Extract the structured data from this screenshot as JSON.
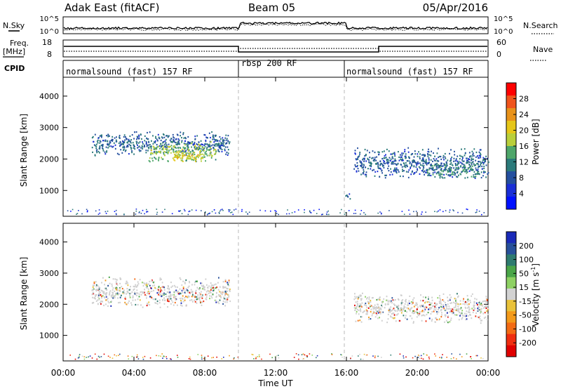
{
  "header": {
    "title": "Adak East (fitACF)",
    "beam": "Beam 05",
    "date": "05/Apr/2016"
  },
  "top_panels": {
    "nsky_label": "N.Sky",
    "nsearch_label": "N.Search",
    "nsky_ticks": [
      "10^5",
      "10^0"
    ],
    "nsearch_ticks": [
      "10^5",
      "10^0"
    ],
    "freq_label": "Freq.",
    "freq_unit": "[MHz]",
    "freq_ticks": [
      "18",
      "8"
    ],
    "nave_label": "Nave",
    "nave_ticks": [
      "60",
      "0"
    ],
    "cpid_label": "CPID",
    "cpid_segments": [
      {
        "label": "normalsound (fast) 157 RF",
        "start_h": 0,
        "end_h": 10
      },
      {
        "label": "rbsp 200 RF",
        "start_h": 10,
        "end_h": 16
      },
      {
        "label": "normalsound (fast) 157 RF",
        "start_h": 16,
        "end_h": 24
      }
    ]
  },
  "x_axis": {
    "label": "Time UT",
    "ticks": [
      "00:00",
      "04:00",
      "08:00",
      "12:00",
      "16:00",
      "20:00",
      "00:00"
    ],
    "range_h": [
      0,
      24
    ]
  },
  "colorbars": {
    "power": {
      "label": "Power [dB]",
      "ticks": [
        "28",
        "24",
        "20",
        "16",
        "12",
        "8",
        "4"
      ],
      "colors": [
        "#ff0000",
        "#f0541c",
        "#e8921a",
        "#e6c619",
        "#b9cf3b",
        "#4ea66a",
        "#2b7a7a",
        "#244f9e",
        "#1a2fd6",
        "#0010ff"
      ]
    },
    "velocity": {
      "label": "Velocity [m s",
      "label_sup": "-1",
      "label_end": "]",
      "ticks": [
        "200",
        "100",
        "50",
        "15",
        "-15",
        "-50",
        "-100",
        "-200"
      ],
      "colors": [
        "#1a2ab8",
        "#27509a",
        "#2e7b6f",
        "#4aa548",
        "#8ed163",
        "#d2d2d2",
        "#e9c23a",
        "#f39a1a",
        "#f36b14",
        "#ef2e10",
        "#e00000"
      ]
    }
  },
  "chart_data": [
    {
      "type": "heatmap",
      "name": "power",
      "ylabel": "Slant Range [km]",
      "yticks": [
        1000,
        2000,
        3000,
        4000
      ],
      "ylim": [
        180,
        4600
      ],
      "xlim": [
        0,
        24
      ],
      "xlabel": "Time UT",
      "colorbar_label": "Power [dB]",
      "regions": [
        {
          "t_start": 1.6,
          "t_end": 9.4,
          "r_min": 2100,
          "r_max": 2900,
          "value_db": 8
        },
        {
          "t_start": 4.8,
          "t_end": 8.6,
          "r_min": 1900,
          "r_max": 2600,
          "value_db": 16
        },
        {
          "t_start": 6.2,
          "t_end": 7.8,
          "r_min": 1900,
          "r_max": 2300,
          "value_db": 20
        },
        {
          "t_start": 16.4,
          "t_end": 24.0,
          "r_min": 1400,
          "r_max": 2400,
          "value_db": 8
        },
        {
          "t_start": 20.5,
          "t_end": 23.5,
          "r_min": 1400,
          "r_max": 1900,
          "value_db": 12
        },
        {
          "t_start": 15.9,
          "t_end": 16.2,
          "r_min": 700,
          "r_max": 1000,
          "value_db": 8
        }
      ]
    },
    {
      "type": "heatmap",
      "name": "velocity",
      "ylabel": "Slant Range [km]",
      "yticks": [
        1000,
        2000,
        3000,
        4000
      ],
      "ylim": [
        180,
        4600
      ],
      "xlim": [
        0,
        24
      ],
      "xlabel": "Time UT",
      "colorbar_label": "Velocity [m s-1]",
      "regions": [
        {
          "t_start": 1.6,
          "t_end": 9.4,
          "r_min": 1900,
          "r_max": 2900,
          "value_ms": 0
        },
        {
          "t_start": 16.4,
          "t_end": 24.0,
          "r_min": 1400,
          "r_max": 2400,
          "value_ms": 0
        }
      ]
    }
  ]
}
